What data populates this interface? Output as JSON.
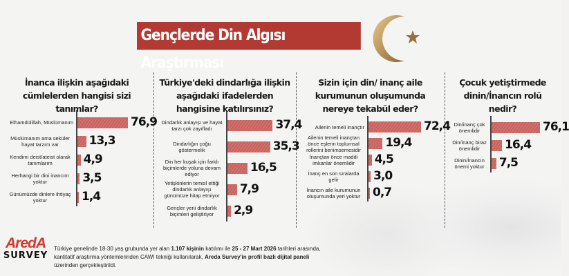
{
  "title": "Gençlerde Din Algısı Araştırması",
  "logo": {
    "brand": "AredA",
    "sub": "SURVEY"
  },
  "footnote": {
    "p1": "Türkiye genelinde 18-30 yaş grubunda yer alan ",
    "b1": "1.107 kişinin",
    "p2": " katılımı ile ",
    "b2": "25 - 27 Mart 2026",
    "p3": " tarihleri arasında, kantitatif araştırma yöntemlerinden CAWI tekniği kullanılarak, ",
    "b3": "Areda Survey'in profil bazlı dijital paneli",
    "p4": " üzerinden gerçekleştirildi."
  },
  "colors": {
    "bar": "#c8625e",
    "banner": "#b23a33"
  },
  "chart_data": [
    {
      "type": "bar",
      "orientation": "horizontal",
      "title": "İnanca ilişkin aşağıdaki cümlelerden hangisi sizi tanımlar?",
      "categories": [
        "Elhamdülillah, Müslümanım",
        "Müslümanım ama seküler hayat tarzım var",
        "Kendimi deist/ateist olarak tanımlarım",
        "Herhangi bir dini inancım yoktur",
        "Günümüzde dinlere ihtiyaç yoktur"
      ],
      "values": [
        76.9,
        13.3,
        4.9,
        3.5,
        1.4
      ],
      "labels": [
        "76,9",
        "13,3",
        "4,9",
        "3,5",
        "1,4"
      ]
    },
    {
      "type": "bar",
      "orientation": "horizontal",
      "title": "Türkiye'deki dindarlığa ilişkin aşağıdaki ifadelerden hangisine katılırsınız?",
      "categories": [
        "Dindarlık anlayışı ve hayat tarzı çok zayıfladı",
        "Dindarlığın çoğu göstermelik",
        "Din her kuşak için farklı biçimlerde yoluna devam ediyor",
        "Yetişkinlerin temsil ettiği dindarlık anlayışı günümüze hitap etmiyor",
        "Gençler yeni dindarlık biçimleri geliştiriyor"
      ],
      "values": [
        37.4,
        35.3,
        16.5,
        7.9,
        2.9
      ],
      "labels": [
        "37,4",
        "35,3",
        "16,5",
        "7,9",
        "2,9"
      ]
    },
    {
      "type": "bar",
      "orientation": "horizontal",
      "title": "Sizin için din/ inanç aile kurumunun oluşumunda nereye tekabül eder?",
      "categories": [
        "Ailenin temeli inançtır",
        "Ailenin temeli inançtan önce eşlerin toplumsal rollerini benimsemesidir",
        "İnançtan önce maddi imkanlar önemlidir",
        "İnanç en son sıralarda gelir",
        "İnancın aile kurumunun oluşumunda yeri yoktur"
      ],
      "values": [
        72.4,
        19.4,
        4.5,
        3.0,
        0.7
      ],
      "labels": [
        "72,4",
        "19,4",
        "4,5",
        "3,0",
        "0,7"
      ]
    },
    {
      "type": "bar",
      "orientation": "horizontal",
      "title": "Çocuk yetiştirmede dinin/İnancın rolü nedir?",
      "categories": [
        "Din/inanç çok önemlidir",
        "Din/inanç biraz önemlidir",
        "Dinin/İnancın önemi yoktur"
      ],
      "values": [
        76.1,
        16.4,
        7.5
      ],
      "labels": [
        "76,1",
        "16,4",
        "7,5"
      ]
    }
  ]
}
